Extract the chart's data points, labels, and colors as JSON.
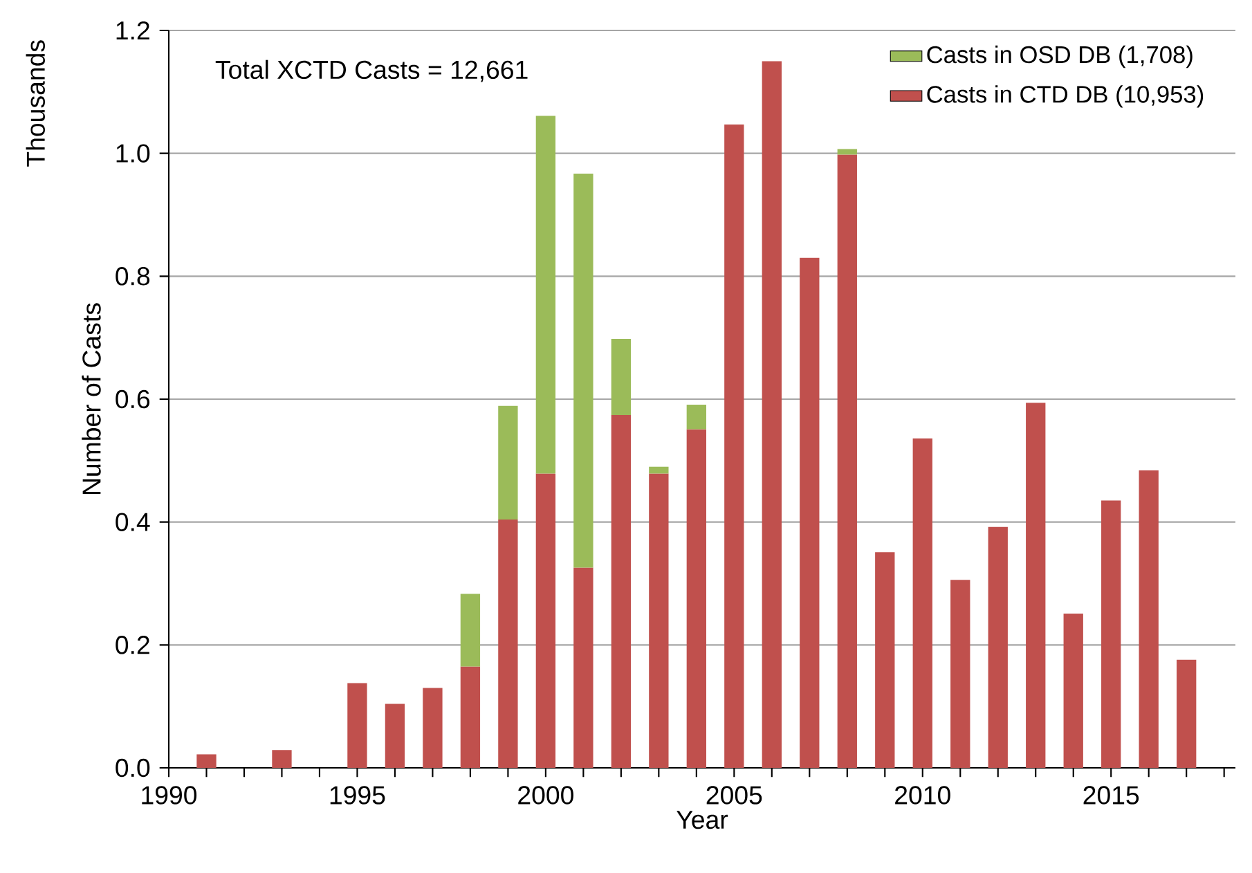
{
  "chart_data": {
    "type": "bar",
    "stacked": true,
    "xlabel": "Year",
    "ylabel": "Number of Casts",
    "annotations": [
      "Total XCTD Casts = 12,661",
      "Thousands"
    ],
    "x": [
      1991,
      1992,
      1993,
      1994,
      1995,
      1996,
      1997,
      1998,
      1999,
      2000,
      2001,
      2002,
      2003,
      2004,
      2005,
      2006,
      2007,
      2008,
      2009,
      2010,
      2011,
      2012,
      2013,
      2014,
      2015,
      2016,
      2017
    ],
    "series": [
      {
        "name": "Casts in CTD DB (10,953)",
        "color": "#c0504d",
        "values": [
          0.022,
          null,
          0.029,
          null,
          0.138,
          0.104,
          0.13,
          0.165,
          0.404,
          0.479,
          0.326,
          0.574,
          0.479,
          0.551,
          1.047,
          1.15,
          0.83,
          0.998,
          0.351,
          0.536,
          0.306,
          0.392,
          0.594,
          0.251,
          0.435,
          0.484,
          0.176
        ]
      },
      {
        "name": "Casts in OSD DB (1,708)",
        "color": "#9bbb59",
        "values": [
          null,
          null,
          null,
          null,
          null,
          null,
          null,
          0.118,
          0.185,
          0.582,
          0.641,
          0.124,
          0.011,
          0.04,
          null,
          null,
          null,
          0.009,
          null,
          null,
          null,
          null,
          null,
          null,
          null,
          null,
          null
        ]
      }
    ],
    "xlim": [
      1990,
      2018.3
    ],
    "xticks": [
      1990,
      {
        "value": 1991,
        "label": null
      },
      {
        "value": 1992,
        "label": null
      },
      {
        "value": 1993,
        "label": null
      },
      {
        "value": 1994,
        "label": null
      },
      1995,
      {
        "value": 1996,
        "label": null
      },
      {
        "value": 1997,
        "label": null
      },
      {
        "value": 1998,
        "label": null
      },
      {
        "value": 1999,
        "label": null
      },
      2000,
      {
        "value": 2001,
        "label": null
      },
      {
        "value": 2002,
        "label": null
      },
      {
        "value": 2003,
        "label": null
      },
      {
        "value": 2004,
        "label": null
      },
      2005,
      {
        "value": 2006,
        "label": null
      },
      {
        "value": 2007,
        "label": null
      },
      {
        "value": 2008,
        "label": null
      },
      {
        "value": 2009,
        "label": null
      },
      2010,
      {
        "value": 2011,
        "label": null
      },
      {
        "value": 2012,
        "label": null
      },
      {
        "value": 2013,
        "label": null
      },
      {
        "value": 2014,
        "label": null
      },
      2015,
      {
        "value": 2016,
        "label": null
      },
      {
        "value": 2017,
        "label": null
      },
      {
        "value": 2018,
        "label": null
      }
    ],
    "ylim": [
      0,
      1.2
    ],
    "yticks": [
      {
        "value": 0,
        "label": "0.0"
      },
      {
        "value": 0.2,
        "label": "0.2"
      },
      {
        "value": 0.4,
        "label": "0.4"
      },
      {
        "value": 0.6,
        "label": "0.6"
      },
      {
        "value": 0.8,
        "label": "0.8"
      },
      {
        "value": 1.0,
        "label": "1.0"
      },
      {
        "value": 1.2,
        "label": "1.2"
      }
    ],
    "grid": "y",
    "legend": "top right"
  }
}
